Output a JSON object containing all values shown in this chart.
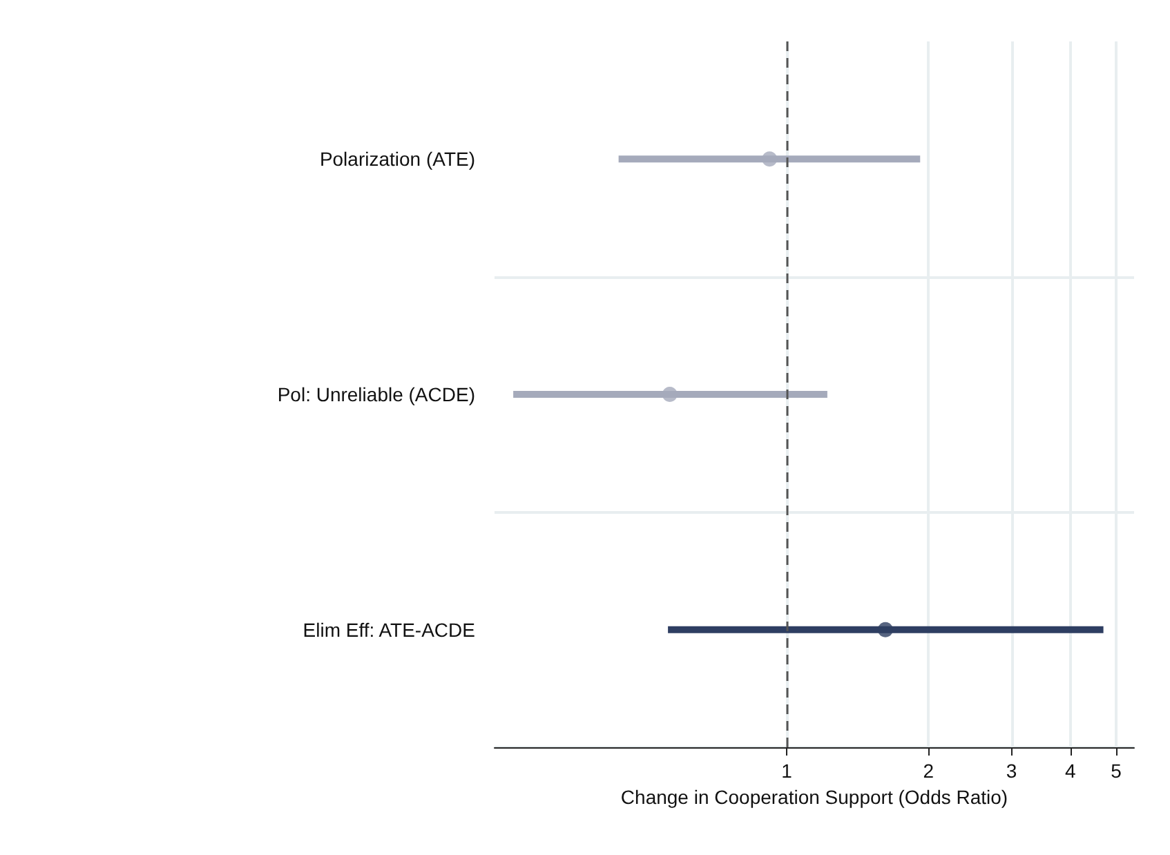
{
  "chart_data": {
    "type": "scatter",
    "orientation": "horizontal",
    "categories": [
      "Polarization (ATE)",
      "Pol: Unreliable (ACDE)",
      "Elim Eff: ATE-ACDE"
    ],
    "values": [
      0.92,
      0.565,
      1.62
    ],
    "colors": [
      "#a5aabb",
      "#a5aabb",
      "#2e3e62"
    ],
    "errors": [
      [
        0.44,
        1.92
      ],
      [
        0.263,
        1.22
      ],
      [
        0.56,
        4.7
      ]
    ],
    "xlabel": "Change in Cooperation Support (Odds Ratio)",
    "log": "x",
    "xlim": [
      0.24,
      5.46
    ],
    "xticks": [
      1,
      2,
      3,
      4,
      5
    ],
    "grid": true,
    "marker": "circle",
    "ref_lines": [
      {
        "axis": "x",
        "value": 1,
        "label": null,
        "color": "#555555",
        "line_style": "dashed"
      }
    ]
  }
}
